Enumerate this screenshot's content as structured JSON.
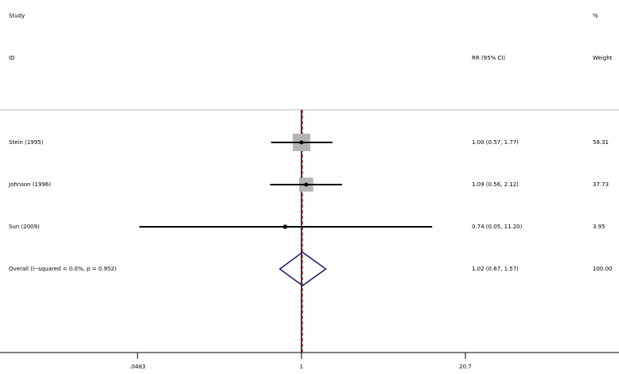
{
  "chart_data": {
    "type": "forest",
    "headers": {
      "study": "Study",
      "id": "ID",
      "percent": "%",
      "effect": "RR (95% CI)",
      "weight": "Weight"
    },
    "categories": [
      "Stein (1995)",
      "Johnson (1996)",
      "Sun (2009)"
    ],
    "rr": [
      1.0,
      1.09,
      0.74
    ],
    "ci_low": [
      0.57,
      0.56,
      0.05
    ],
    "ci_high": [
      1.77,
      2.12,
      11.2
    ],
    "rr_labels": [
      "1.00 (0.57, 1.77)",
      "1.09 (0.56, 2.12)",
      "0.74 (0.05, 11.20)"
    ],
    "weights": [
      58.31,
      37.73,
      3.95
    ],
    "weight_labels": [
      "58.31",
      "37.73",
      "3.95"
    ],
    "overall": {
      "label": "Overall  (I--squared = 0.0%, p = 0.952)",
      "rr": 1.02,
      "ci_low": 0.67,
      "ci_high": 1.57,
      "rr_label": "1.02 (0.67, 1.57)",
      "weight": 100.0,
      "weight_label": "100.00"
    },
    "null_line": 1,
    "xscale": "log",
    "xlim": [
      0.0038,
      354
    ],
    "xticks": [
      {
        "value": 0.0483,
        "label": ".0483"
      },
      1,
      20.7
    ],
    "square_color": "#b4b4b4",
    "diamond_color": "#1a1a6e",
    "line_color": "#000000",
    "overall_line_color": "#c0504d"
  }
}
